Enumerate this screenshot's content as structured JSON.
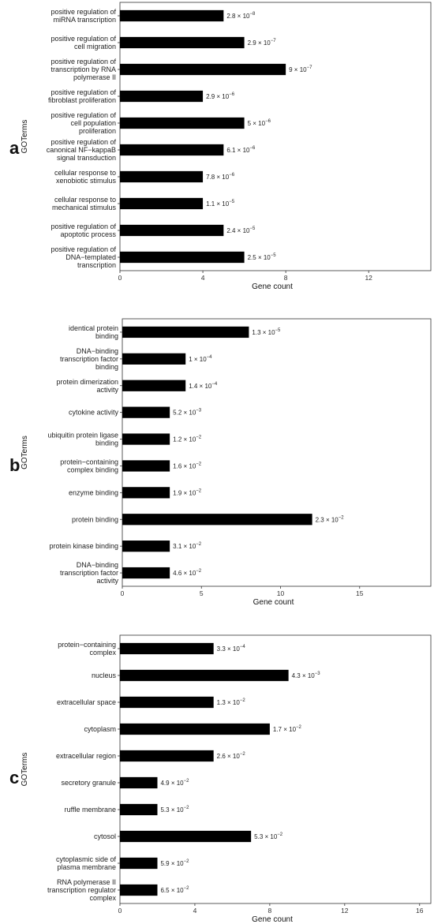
{
  "chart_data": [
    {
      "type": "bar",
      "orientation": "horizontal",
      "panel_label": "a",
      "xlabel": "Gene count",
      "ylabel": "GOTerms",
      "xlim": [
        0,
        15
      ],
      "xticks": [
        0,
        4,
        8,
        12
      ],
      "grid": false,
      "categories": [
        [
          "positive regulation of",
          "miRNA transcription"
        ],
        [
          "positive regulation of",
          "cell migration"
        ],
        [
          "positive regulation of",
          "transcription by RNA",
          "polymerase II"
        ],
        [
          "positive regulation of",
          "fibroblast proliferation"
        ],
        [
          "positive regulation of",
          "cell population",
          "proliferation"
        ],
        [
          "positive regulation of",
          "canonical NF−kappaB",
          "signal transduction"
        ],
        [
          "cellular response to",
          "xenobiotic stimulus"
        ],
        [
          "cellular response to",
          "mechanical stimulus"
        ],
        [
          "positive regulation of",
          "apoptotic process"
        ],
        [
          "positive regulation of",
          "DNA−templated",
          "transcription"
        ]
      ],
      "values": [
        5,
        6,
        8,
        4,
        6,
        5,
        4,
        4,
        5,
        6
      ],
      "annotations": [
        {
          "mantissa": "2.8",
          "exponent": "−8"
        },
        {
          "mantissa": "2.9",
          "exponent": "−7"
        },
        {
          "mantissa": "9",
          "exponent": "−7"
        },
        {
          "mantissa": "2.9",
          "exponent": "−6"
        },
        {
          "mantissa": "5",
          "exponent": "−6"
        },
        {
          "mantissa": "6.1",
          "exponent": "−6"
        },
        {
          "mantissa": "7.8",
          "exponent": "−6"
        },
        {
          "mantissa": "1.1",
          "exponent": "−5"
        },
        {
          "mantissa": "2.4",
          "exponent": "−5"
        },
        {
          "mantissa": "2.5",
          "exponent": "−5"
        }
      ]
    },
    {
      "type": "bar",
      "orientation": "horizontal",
      "panel_label": "b",
      "xlabel": "Gene count",
      "ylabel": "GOTerms",
      "xlim": [
        0,
        19.5
      ],
      "xticks": [
        0,
        5,
        10,
        15
      ],
      "grid": false,
      "categories": [
        [
          "identical protein",
          "binding"
        ],
        [
          "DNA−binding",
          "transcription factor",
          "binding"
        ],
        [
          "protein dimerization",
          "activity"
        ],
        [
          "cytokine activity"
        ],
        [
          "ubiquitin protein ligase",
          "binding"
        ],
        [
          "protein−containing",
          "complex binding"
        ],
        [
          "enzyme binding"
        ],
        [
          "protein binding"
        ],
        [
          "protein kinase binding"
        ],
        [
          "DNA−binding",
          "transcription factor",
          "activity"
        ]
      ],
      "values": [
        8,
        4,
        4,
        3,
        3,
        3,
        3,
        12,
        3,
        3
      ],
      "annotations": [
        {
          "mantissa": "1.3",
          "exponent": "−5"
        },
        {
          "mantissa": "1",
          "exponent": "−4"
        },
        {
          "mantissa": "1.4",
          "exponent": "−4"
        },
        {
          "mantissa": "5.2",
          "exponent": "−3"
        },
        {
          "mantissa": "1.2",
          "exponent": "−2"
        },
        {
          "mantissa": "1.6",
          "exponent": "−2"
        },
        {
          "mantissa": "1.9",
          "exponent": "−2"
        },
        {
          "mantissa": "2.3",
          "exponent": "−2"
        },
        {
          "mantissa": "3.1",
          "exponent": "−2"
        },
        {
          "mantissa": "4.6",
          "exponent": "−2"
        }
      ]
    },
    {
      "type": "bar",
      "orientation": "horizontal",
      "panel_label": "c",
      "xlabel": "Gene count",
      "ylabel": "GOTerms",
      "xlim": [
        0,
        16.6
      ],
      "xticks": [
        0,
        4,
        8,
        12,
        16
      ],
      "grid": false,
      "categories": [
        [
          "protein−containing",
          "complex"
        ],
        [
          "nucleus"
        ],
        [
          "extracellular space"
        ],
        [
          "cytoplasm"
        ],
        [
          "extracellular region"
        ],
        [
          "secretory granule"
        ],
        [
          "ruffle membrane"
        ],
        [
          "cytosol"
        ],
        [
          "cytoplasmic side of",
          "plasma membrane"
        ],
        [
          "RNA polymerase II",
          "transcription regulator",
          "complex"
        ]
      ],
      "values": [
        5,
        9,
        5,
        8,
        5,
        2,
        2,
        7,
        2,
        2
      ],
      "annotations": [
        {
          "mantissa": "3.3",
          "exponent": "−4"
        },
        {
          "mantissa": "4.3",
          "exponent": "−3"
        },
        {
          "mantissa": "1.3",
          "exponent": "−2"
        },
        {
          "mantissa": "1.7",
          "exponent": "−2"
        },
        {
          "mantissa": "2.6",
          "exponent": "−2"
        },
        {
          "mantissa": "4.9",
          "exponent": "−2"
        },
        {
          "mantissa": "5.3",
          "exponent": "−2"
        },
        {
          "mantissa": "5.3",
          "exponent": "−2"
        },
        {
          "mantissa": "5.9",
          "exponent": "−2"
        },
        {
          "mantissa": "6.5",
          "exponent": "−2"
        }
      ]
    }
  ]
}
